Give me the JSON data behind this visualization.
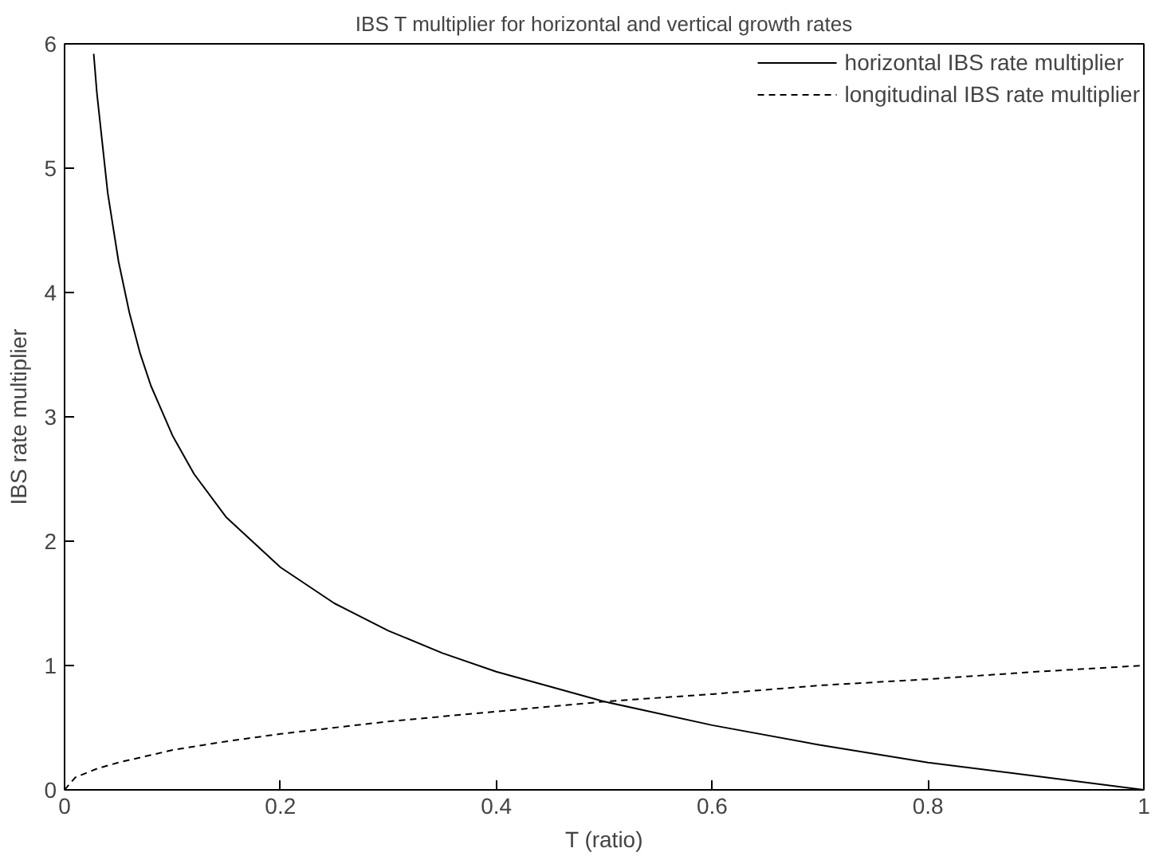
{
  "chart_data": {
    "type": "line",
    "title": "IBS T multiplier for horizontal and vertical growth rates",
    "xlabel": "T (ratio)",
    "ylabel": "IBS rate multiplier",
    "xlim": [
      0,
      1
    ],
    "ylim": [
      0,
      6
    ],
    "xticks": [
      0,
      0.2,
      0.4,
      0.6,
      0.8,
      {
        "value": 1,
        "label": "1"
      }
    ],
    "yticks": [
      0,
      1,
      2,
      3,
      4,
      5,
      6
    ],
    "grid": false,
    "legend": "top right",
    "marker": "none",
    "series": [
      {
        "name": "horizontal IBS rate multiplier",
        "color": "#000000",
        "line_style": "solid",
        "x": [
          0.027,
          0.03,
          0.04,
          0.05,
          0.06,
          0.07,
          0.08,
          0.1,
          0.12,
          0.15,
          0.2,
          0.25,
          0.3,
          0.35,
          0.4,
          0.5,
          0.6,
          0.7,
          0.8,
          0.9,
          1.0
        ],
        "values": [
          5.92,
          5.6,
          4.8,
          4.25,
          3.84,
          3.51,
          3.25,
          2.85,
          2.54,
          2.19,
          1.79,
          1.5,
          1.28,
          1.1,
          0.95,
          0.71,
          0.52,
          0.36,
          0.22,
          0.11,
          0
        ]
      },
      {
        "name": "longitudinal IBS rate multiplier",
        "color": "#000000",
        "line_style": "dashed",
        "x": [
          0,
          0.01,
          0.03,
          0.05,
          0.1,
          0.15,
          0.2,
          0.3,
          0.4,
          0.5,
          0.6,
          0.7,
          0.8,
          0.9,
          1.0
        ],
        "values": [
          0,
          0.1,
          0.17,
          0.22,
          0.32,
          0.39,
          0.45,
          0.55,
          0.63,
          0.71,
          0.77,
          0.84,
          0.89,
          0.95,
          1.0
        ]
      }
    ]
  }
}
